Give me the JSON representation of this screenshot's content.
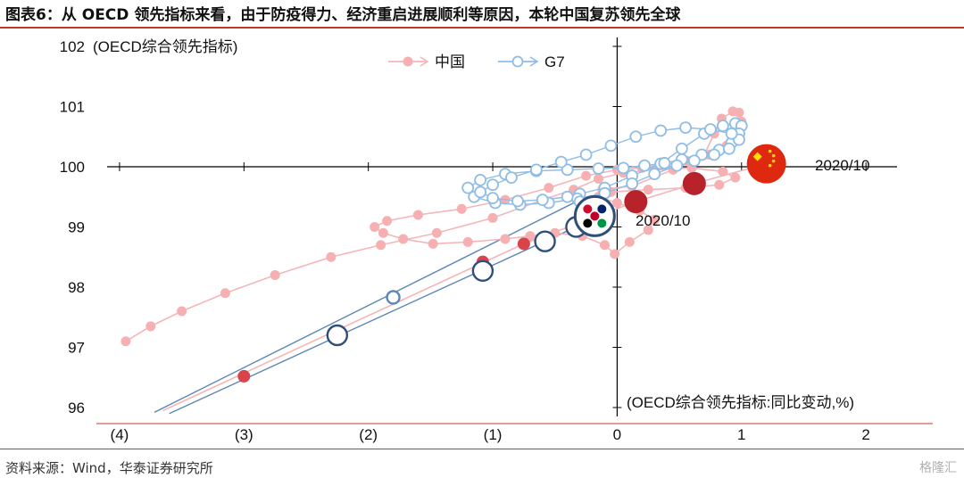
{
  "header": {
    "title": "图表6：从 OECD 领先指标来看，由于防疫得力、经济重启进展顺利等原因，本轮中国复苏领先全球"
  },
  "footer": {
    "source": "资料来源：Wind，华泰证券研究所",
    "watermark": "格隆汇"
  },
  "colors": {
    "accent_rule": "#c0392b",
    "china_line": "#f4b6b8",
    "china_marker": "#f6b0b2",
    "china_big": "#b8222a",
    "g7_line": "#5b86b5",
    "g7_marker_stroke": "#8fbde6",
    "g7_big_stroke": "#2f4f7a"
  },
  "chart_data": {
    "type": "scatter",
    "ylabel": "(OECD综合领先指标)",
    "xlabel": "(OECD综合领先指标:同比变动,%)",
    "xlim": [
      -4.1,
      2.25
    ],
    "ylim": [
      96,
      102
    ],
    "x_ticks": [
      -4,
      -3,
      -2,
      -1,
      0,
      1,
      2
    ],
    "x_tick_labels": [
      "(4)",
      "(3)",
      "(2)",
      "(1)",
      "0",
      "1",
      "2"
    ],
    "y_ticks": [
      96,
      97,
      98,
      99,
      100,
      101,
      102
    ],
    "y_tick_labels": [
      "96",
      "97",
      "98",
      "99",
      "100",
      "101",
      "102"
    ],
    "legend_position": "top-center",
    "annotations": [
      {
        "text": "2020/10",
        "series": "中国",
        "x": 1.42,
        "y": 100.05
      },
      {
        "text": "2020/10",
        "series": "G7",
        "x": 0.05,
        "y": 99.1
      }
    ],
    "series": [
      {
        "name": "中国",
        "marker": "filled-circle",
        "points": [
          [
            -0.12,
            99.62
          ],
          [
            0.12,
            99.68
          ],
          [
            0.45,
            99.95
          ],
          [
            0.7,
            100.2
          ],
          [
            0.78,
            100.55
          ],
          [
            0.84,
            100.8
          ],
          [
            0.93,
            100.92
          ],
          [
            0.98,
            100.9
          ],
          [
            1.0,
            100.75
          ],
          [
            0.97,
            100.55
          ],
          [
            0.88,
            100.35
          ],
          [
            0.74,
            100.2
          ],
          [
            0.56,
            100.1
          ],
          [
            0.36,
            100.03
          ],
          [
            0.2,
            99.98
          ],
          [
            0.0,
            99.95
          ],
          [
            -0.25,
            99.85
          ],
          [
            -0.55,
            99.65
          ],
          [
            -0.9,
            99.45
          ],
          [
            -1.25,
            99.3
          ],
          [
            -1.6,
            99.2
          ],
          [
            -1.85,
            99.1
          ],
          [
            -1.95,
            99.0
          ],
          [
            -1.88,
            98.9
          ],
          [
            -1.72,
            98.8
          ],
          [
            -1.48,
            98.72
          ],
          [
            -1.2,
            98.75
          ],
          [
            -0.9,
            98.8
          ],
          [
            -0.7,
            98.85
          ],
          [
            -0.5,
            98.9
          ],
          [
            -0.28,
            98.85
          ],
          [
            -0.1,
            98.7
          ],
          [
            -0.02,
            98.55
          ],
          [
            0.1,
            98.75
          ],
          [
            0.25,
            98.95
          ],
          [
            0.3,
            99.12
          ],
          [
            0.18,
            99.27
          ],
          [
            0.0,
            99.4
          ],
          [
            -0.15,
            99.5
          ],
          [
            -0.05,
            99.58
          ],
          [
            0.25,
            99.62
          ],
          [
            0.55,
            99.65
          ],
          [
            0.82,
            99.7
          ],
          [
            0.95,
            99.82
          ],
          [
            0.85,
            99.92
          ],
          [
            0.6,
            99.98
          ],
          [
            0.3,
            99.95
          ],
          [
            0.05,
            99.9
          ],
          [
            -0.15,
            99.8
          ],
          [
            -0.35,
            99.62
          ],
          [
            -0.6,
            99.45
          ],
          [
            -1.0,
            99.15
          ],
          [
            -1.45,
            98.9
          ],
          [
            -1.9,
            98.7
          ],
          [
            -2.3,
            98.5
          ],
          [
            -2.75,
            98.2
          ],
          [
            -3.15,
            97.9
          ],
          [
            -3.5,
            97.6
          ],
          [
            -3.75,
            97.35
          ],
          [
            -3.95,
            97.1
          ]
        ],
        "key_points": [
          {
            "x": -3.0,
            "y": 96.52,
            "size": "small"
          },
          {
            "x": -1.08,
            "y": 98.42,
            "size": "small"
          },
          {
            "x": -0.75,
            "y": 98.72,
            "size": "small"
          },
          {
            "x": 0.15,
            "y": 99.42,
            "size": "large"
          },
          {
            "x": 0.62,
            "y": 99.72,
            "size": "large"
          },
          {
            "x": 1.2,
            "y": 100.05,
            "size": "flag"
          }
        ],
        "path_lines": [
          {
            "from": [
              -3.65,
              95.95
            ],
            "to": [
              -0.75,
              98.72
            ]
          },
          {
            "from": [
              -0.75,
              98.72
            ],
            "to": [
              0.15,
              99.42
            ]
          },
          {
            "from": [
              0.15,
              99.42
            ],
            "to": [
              0.62,
              99.72
            ]
          },
          {
            "from": [
              0.62,
              99.72
            ],
            "to": [
              1.2,
              100.05
            ]
          }
        ]
      },
      {
        "name": "G7",
        "marker": "hollow-circle",
        "points": [
          [
            -0.3,
            99.55
          ],
          [
            -0.1,
            99.65
          ],
          [
            0.12,
            99.85
          ],
          [
            0.35,
            100.05
          ],
          [
            0.52,
            100.3
          ],
          [
            0.7,
            100.55
          ],
          [
            0.85,
            100.68
          ],
          [
            0.95,
            100.72
          ],
          [
            1.0,
            100.68
          ],
          [
            0.98,
            100.55
          ],
          [
            0.92,
            100.4
          ],
          [
            0.82,
            100.28
          ],
          [
            0.68,
            100.2
          ],
          [
            0.52,
            100.12
          ],
          [
            0.38,
            100.06
          ],
          [
            0.22,
            100.02
          ],
          [
            0.05,
            99.98
          ],
          [
            -0.15,
            99.97
          ],
          [
            -0.4,
            99.95
          ],
          [
            -0.65,
            99.93
          ],
          [
            -0.9,
            99.88
          ],
          [
            -1.1,
            99.78
          ],
          [
            -1.2,
            99.65
          ],
          [
            -1.15,
            99.5
          ],
          [
            -0.98,
            99.4
          ],
          [
            -0.78,
            99.37
          ],
          [
            -0.55,
            99.4
          ],
          [
            -0.32,
            99.47
          ],
          [
            -0.1,
            99.56
          ],
          [
            0.12,
            99.72
          ],
          [
            0.3,
            99.88
          ],
          [
            0.48,
            100.02
          ],
          [
            0.62,
            100.1
          ],
          [
            0.78,
            100.2
          ],
          [
            0.9,
            100.3
          ],
          [
            0.98,
            100.45
          ],
          [
            0.92,
            100.55
          ],
          [
            0.75,
            100.62
          ],
          [
            0.55,
            100.65
          ],
          [
            0.35,
            100.6
          ],
          [
            0.15,
            100.5
          ],
          [
            -0.05,
            100.35
          ],
          [
            -0.25,
            100.2
          ],
          [
            -0.45,
            100.08
          ],
          [
            -0.65,
            99.95
          ],
          [
            -0.85,
            99.82
          ],
          [
            -1.0,
            99.7
          ],
          [
            -1.1,
            99.58
          ],
          [
            -1.0,
            99.48
          ],
          [
            -0.8,
            99.43
          ],
          [
            -0.6,
            99.45
          ],
          [
            -0.4,
            99.5
          ],
          [
            -0.3,
            99.42
          ],
          [
            -0.27,
            99.12
          ]
        ],
        "key_points": [
          {
            "x": -1.8,
            "y": 97.83,
            "size": "small"
          },
          {
            "x": -2.25,
            "y": 97.2,
            "size": "large"
          },
          {
            "x": -1.08,
            "y": 98.27,
            "size": "large"
          },
          {
            "x": -0.58,
            "y": 98.76,
            "size": "large"
          },
          {
            "x": -0.33,
            "y": 99.0,
            "size": "large"
          },
          {
            "x": -0.18,
            "y": 99.18,
            "size": "flag"
          }
        ],
        "path_lines": [
          {
            "from": [
              -3.6,
              95.9
            ],
            "to": [
              -0.33,
              99.0
            ]
          },
          {
            "from": [
              -3.72,
              95.92
            ],
            "to": [
              -0.3,
              99.45
            ]
          }
        ]
      }
    ]
  }
}
